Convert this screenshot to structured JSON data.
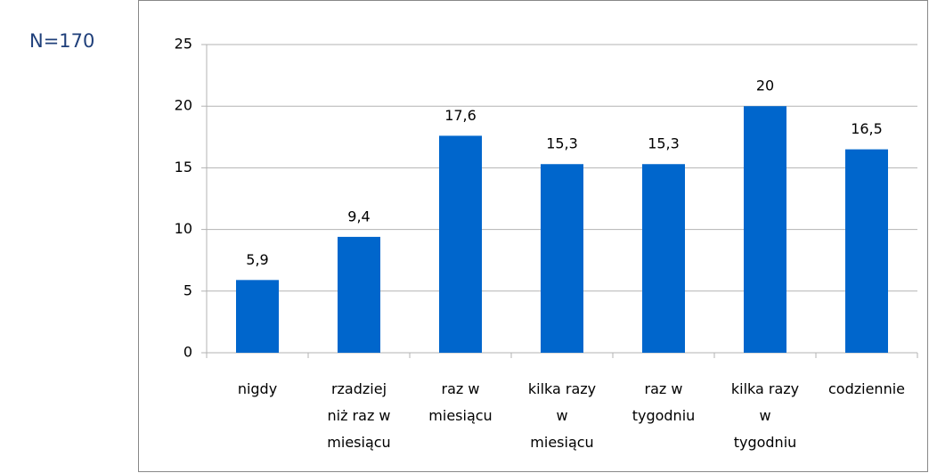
{
  "annotation": "N=170",
  "chart_data": {
    "type": "bar",
    "categories": [
      [
        "nigdy"
      ],
      [
        "rzadziej",
        "niż raz w",
        "miesiącu"
      ],
      [
        "raz w",
        "miesiącu"
      ],
      [
        "kilka razy",
        "w",
        "miesiącu"
      ],
      [
        "raz w",
        "tygodniu"
      ],
      [
        "kilka razy",
        "w",
        "tygodniu"
      ],
      [
        "codziennie"
      ]
    ],
    "values": [
      5.9,
      9.4,
      17.6,
      15.3,
      15.3,
      20,
      16.5
    ],
    "value_labels": [
      "5,9",
      "9,4",
      "17,6",
      "15,3",
      "15,3",
      "20",
      "16,5"
    ],
    "color": "#0066cc",
    "ylim": [
      0,
      25
    ],
    "yticks": [
      0,
      5,
      10,
      15,
      20,
      25
    ],
    "grid": true
  }
}
